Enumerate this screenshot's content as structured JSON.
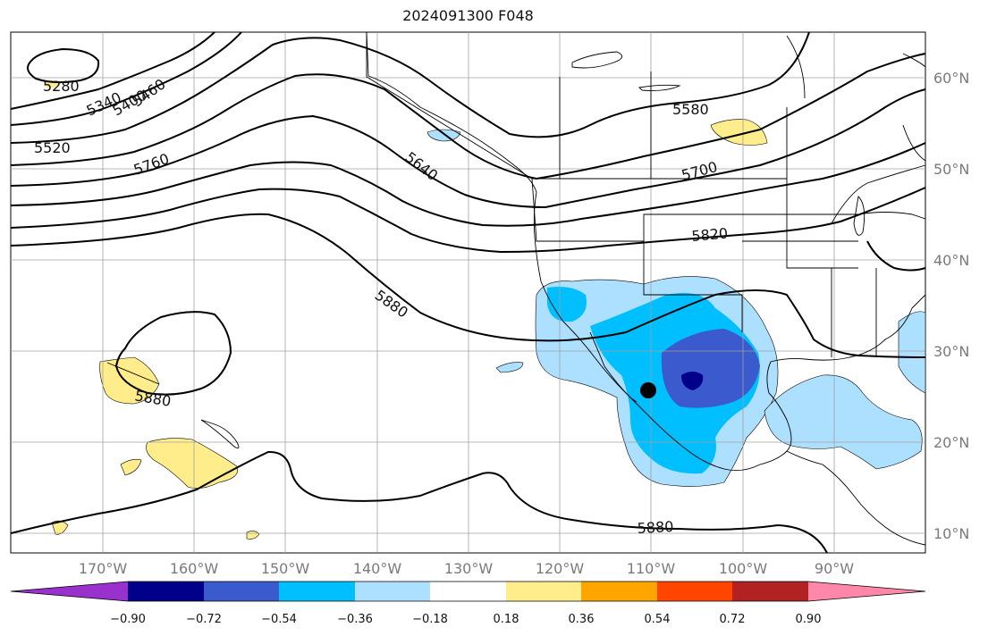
{
  "title": "2024091300 F048",
  "map": {
    "lat_labels": [
      "60°N",
      "50°N",
      "40°N",
      "30°N",
      "20°N",
      "10°N"
    ],
    "lon_labels": [
      "170°W",
      "160°W",
      "150°W",
      "140°W",
      "130°W",
      "120°W",
      "110°W",
      "100°W",
      "90°W"
    ],
    "contour_labels": [
      "5280",
      "5340",
      "5400",
      "5460",
      "5520",
      "5580",
      "5640",
      "5700",
      "5760",
      "5820",
      "5880",
      "5880",
      "5880"
    ]
  },
  "colorbar": {
    "ticks": [
      "−0.90",
      "−0.72",
      "−0.54",
      "−0.36",
      "−0.18",
      "0.18",
      "0.36",
      "0.54",
      "0.72",
      "0.90"
    ],
    "colors": [
      "#9932CC",
      "#00008B",
      "#3A5ACD",
      "#00BFFF",
      "#ADDFFF",
      "#FFFFFF",
      "#FFEC8B",
      "#FFA500",
      "#FF4500",
      "#B22222",
      "#FF88AA"
    ]
  }
}
